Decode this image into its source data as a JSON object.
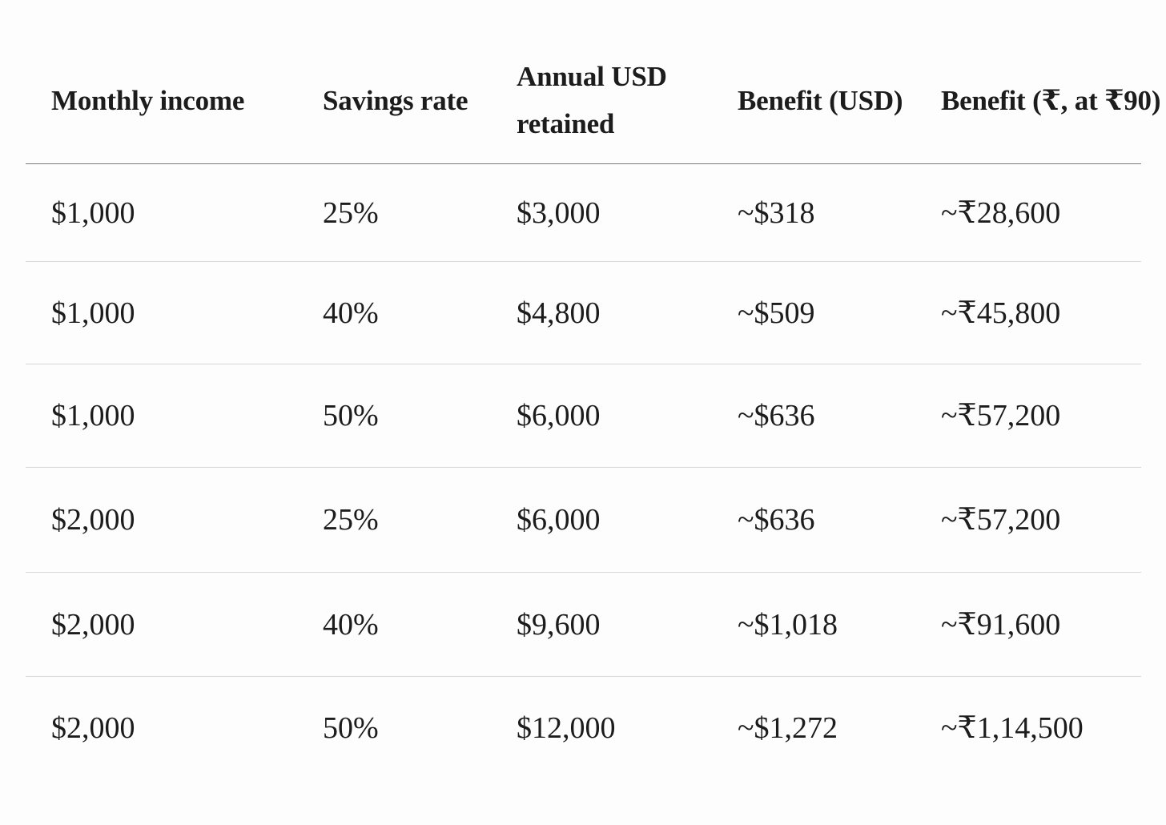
{
  "table": {
    "headers": [
      "Monthly income",
      "Savings rate",
      "Annual USD retained",
      "Benefit (USD)",
      "Benefit (₹, at ₹90)"
    ],
    "rows": [
      [
        "$1,000",
        "25%",
        "$3,000",
        "~$318",
        "~₹28,600"
      ],
      [
        "$1,000",
        "40%",
        "$4,800",
        "~$509",
        "~₹45,800"
      ],
      [
        "$1,000",
        "50%",
        "$6,000",
        "~$636",
        "~₹57,200"
      ],
      [
        "$2,000",
        "25%",
        "$6,000",
        "~$636",
        "~₹57,200"
      ],
      [
        "$2,000",
        "40%",
        "$9,600",
        "~$1,018",
        "~₹91,600"
      ],
      [
        "$2,000",
        "50%",
        "$12,000",
        "~$1,272",
        "~₹1,14,500"
      ]
    ]
  }
}
